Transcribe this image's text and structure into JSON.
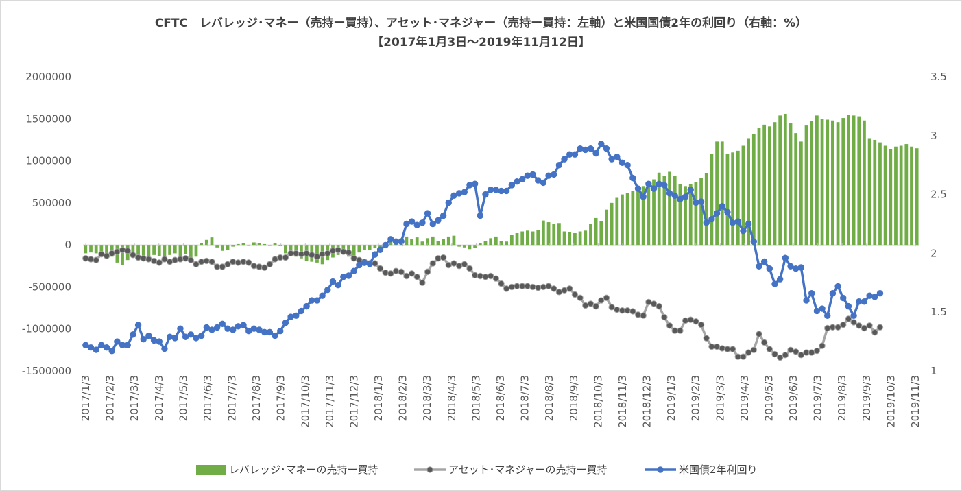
{
  "chart_data": {
    "type": "bar+line",
    "title_line1": "CFTC　レバレッジ･マネー（売持ー買持）、アセット･マネジャー（売持ー買持：左軸）と米国国債2年の利回り（右軸：%）",
    "title_line2": "【2017年1月3日～2019年11月12日】",
    "left_axis": {
      "ylim": [
        -1500000,
        2000000
      ],
      "ticks": [
        "2000000",
        "1500000",
        "1000000",
        "500000",
        "0",
        "-500000",
        "-1000000",
        "-1500000"
      ]
    },
    "right_axis": {
      "ylim": [
        1,
        3.5
      ],
      "ticks": [
        "3.5",
        "3",
        "2.5",
        "2",
        "1.5",
        "1"
      ]
    },
    "x_tick_labels": [
      "2017/1/3",
      "2017/2/3",
      "2017/3/3",
      "2017/4/3",
      "2017/5/3",
      "2017/6/3",
      "2017/7/3",
      "2017/8/3",
      "2017/9/3",
      "2017/10/3",
      "2017/11/3",
      "2017/12/3",
      "2018/1/3",
      "2018/2/3",
      "2018/3/3",
      "2018/4/3",
      "2018/5/3",
      "2018/6/3",
      "2018/7/3",
      "2018/8/3",
      "2018/9/3",
      "2018/10/3",
      "2018/11/3",
      "2018/12/3",
      "2019/1/3",
      "2019/2/3",
      "2019/3/3",
      "2019/4/3",
      "2019/5/3",
      "2019/6/3",
      "2019/7/3",
      "2019/8/3",
      "2019/9/3",
      "2019/10/3",
      "2019/11/3"
    ],
    "series": [
      {
        "name": "レバレッジ･マネーの売持ー買持",
        "type": "bar",
        "axis": "left",
        "color": "#70ad47",
        "values": [
          -100000,
          -90000,
          -100000,
          -95000,
          -110000,
          -140000,
          -210000,
          -240000,
          -180000,
          -150000,
          -140000,
          -130000,
          -150000,
          -120000,
          -130000,
          -140000,
          -120000,
          -100000,
          -140000,
          -110000,
          -150000,
          -140000,
          20000,
          60000,
          90000,
          -30000,
          -70000,
          -60000,
          -20000,
          10000,
          20000,
          0,
          30000,
          20000,
          10000,
          0,
          20000,
          -10000,
          -100000,
          -120000,
          -140000,
          -160000,
          -190000,
          -200000,
          -210000,
          -230000,
          -180000,
          -150000,
          -120000,
          -90000,
          -140000,
          -150000,
          -90000,
          -60000,
          -60000,
          -40000,
          -30000,
          10000,
          40000,
          60000,
          80000,
          100000,
          70000,
          90000,
          40000,
          80000,
          100000,
          50000,
          70000,
          100000,
          110000,
          -20000,
          -30000,
          -50000,
          -40000,
          20000,
          50000,
          80000,
          100000,
          50000,
          40000,
          120000,
          140000,
          160000,
          170000,
          160000,
          180000,
          290000,
          270000,
          250000,
          260000,
          160000,
          150000,
          140000,
          160000,
          170000,
          250000,
          320000,
          280000,
          420000,
          500000,
          560000,
          600000,
          620000,
          640000,
          680000,
          700000,
          720000,
          780000,
          860000,
          820000,
          870000,
          820000,
          720000,
          700000,
          720000,
          750000,
          800000,
          850000,
          1080000,
          1230000,
          1230000,
          1080000,
          1100000,
          1120000,
          1180000,
          1270000,
          1320000,
          1390000,
          1430000,
          1410000,
          1460000,
          1540000,
          1560000,
          1450000,
          1330000,
          1230000,
          1420000,
          1470000,
          1540000,
          1500000,
          1490000,
          1480000,
          1460000,
          1510000,
          1550000,
          1540000,
          1530000,
          1480000,
          1270000,
          1250000,
          1220000,
          1180000,
          1140000,
          1170000,
          1180000,
          1200000,
          1170000,
          1150000
        ]
      },
      {
        "name": "アセット･マネジャーの売持ー買持",
        "type": "line",
        "axis": "left",
        "color": "#a5a5a5",
        "values": [
          -160000,
          -170000,
          -180000,
          -110000,
          -130000,
          -100000,
          -80000,
          -60000,
          -70000,
          -120000,
          -150000,
          -160000,
          -170000,
          -190000,
          -210000,
          -170000,
          -200000,
          -180000,
          -170000,
          -160000,
          -180000,
          -230000,
          -200000,
          -190000,
          -200000,
          -260000,
          -260000,
          -230000,
          -200000,
          -210000,
          -200000,
          -210000,
          -250000,
          -260000,
          -270000,
          -230000,
          -170000,
          -150000,
          -150000,
          -100000,
          -100000,
          -110000,
          -100000,
          -120000,
          -140000,
          -110000,
          -100000,
          -70000,
          -60000,
          -80000,
          -90000,
          -160000,
          -180000,
          -200000,
          -220000,
          -220000,
          -280000,
          -330000,
          -340000,
          -310000,
          -320000,
          -370000,
          -340000,
          -380000,
          -450000,
          -320000,
          -220000,
          -160000,
          -150000,
          -240000,
          -220000,
          -250000,
          -230000,
          -280000,
          -360000,
          -370000,
          -380000,
          -370000,
          -400000,
          -460000,
          -520000,
          -500000,
          -490000,
          -490000,
          -490000,
          -500000,
          -510000,
          -500000,
          -490000,
          -520000,
          -560000,
          -540000,
          -520000,
          -590000,
          -630000,
          -720000,
          -700000,
          -730000,
          -660000,
          -630000,
          -740000,
          -770000,
          -780000,
          -780000,
          -790000,
          -830000,
          -840000,
          -680000,
          -700000,
          -730000,
          -860000,
          -960000,
          -1020000,
          -1020000,
          -900000,
          -890000,
          -910000,
          -950000,
          -1110000,
          -1210000,
          -1210000,
          -1230000,
          -1240000,
          -1240000,
          -1330000,
          -1330000,
          -1280000,
          -1250000,
          -1060000,
          -1160000,
          -1240000,
          -1300000,
          -1340000,
          -1310000,
          -1250000,
          -1270000,
          -1310000,
          -1280000,
          -1280000,
          -1260000,
          -1200000,
          -990000,
          -980000,
          -980000,
          -950000,
          -880000,
          -920000,
          -960000,
          -990000,
          -960000,
          -1040000,
          -980000
        ]
      },
      {
        "name": "米国債2年利回り",
        "type": "line",
        "axis": "right",
        "color": "#4472c4",
        "values": [
          1.22,
          1.2,
          1.18,
          1.22,
          1.2,
          1.17,
          1.25,
          1.22,
          1.22,
          1.31,
          1.39,
          1.27,
          1.3,
          1.26,
          1.25,
          1.19,
          1.29,
          1.28,
          1.36,
          1.29,
          1.31,
          1.28,
          1.3,
          1.37,
          1.35,
          1.37,
          1.4,
          1.36,
          1.35,
          1.38,
          1.39,
          1.34,
          1.36,
          1.35,
          1.33,
          1.33,
          1.3,
          1.34,
          1.41,
          1.46,
          1.47,
          1.51,
          1.55,
          1.6,
          1.6,
          1.64,
          1.69,
          1.76,
          1.73,
          1.8,
          1.81,
          1.85,
          1.9,
          1.92,
          1.91,
          1.99,
          2.03,
          2.07,
          2.12,
          2.1,
          2.1,
          2.25,
          2.27,
          2.24,
          2.26,
          2.34,
          2.25,
          2.28,
          2.32,
          2.43,
          2.49,
          2.51,
          2.52,
          2.58,
          2.59,
          2.32,
          2.5,
          2.54,
          2.54,
          2.53,
          2.53,
          2.58,
          2.61,
          2.63,
          2.66,
          2.67,
          2.62,
          2.6,
          2.66,
          2.67,
          2.75,
          2.8,
          2.84,
          2.84,
          2.89,
          2.88,
          2.89,
          2.85,
          2.93,
          2.89,
          2.8,
          2.82,
          2.77,
          2.75,
          2.64,
          2.55,
          2.48,
          2.59,
          2.55,
          2.59,
          2.58,
          2.51,
          2.49,
          2.46,
          2.48,
          2.54,
          2.43,
          2.44,
          2.26,
          2.29,
          2.34,
          2.4,
          2.35,
          2.26,
          2.27,
          2.19,
          2.25,
          2.1,
          1.89,
          1.93,
          1.87,
          1.74,
          1.78,
          1.96,
          1.89,
          1.87,
          1.88,
          1.6,
          1.66,
          1.51,
          1.53,
          1.47,
          1.66,
          1.72,
          1.62,
          1.55,
          1.47,
          1.59,
          1.59,
          1.64,
          1.63,
          1.66
        ]
      }
    ]
  }
}
